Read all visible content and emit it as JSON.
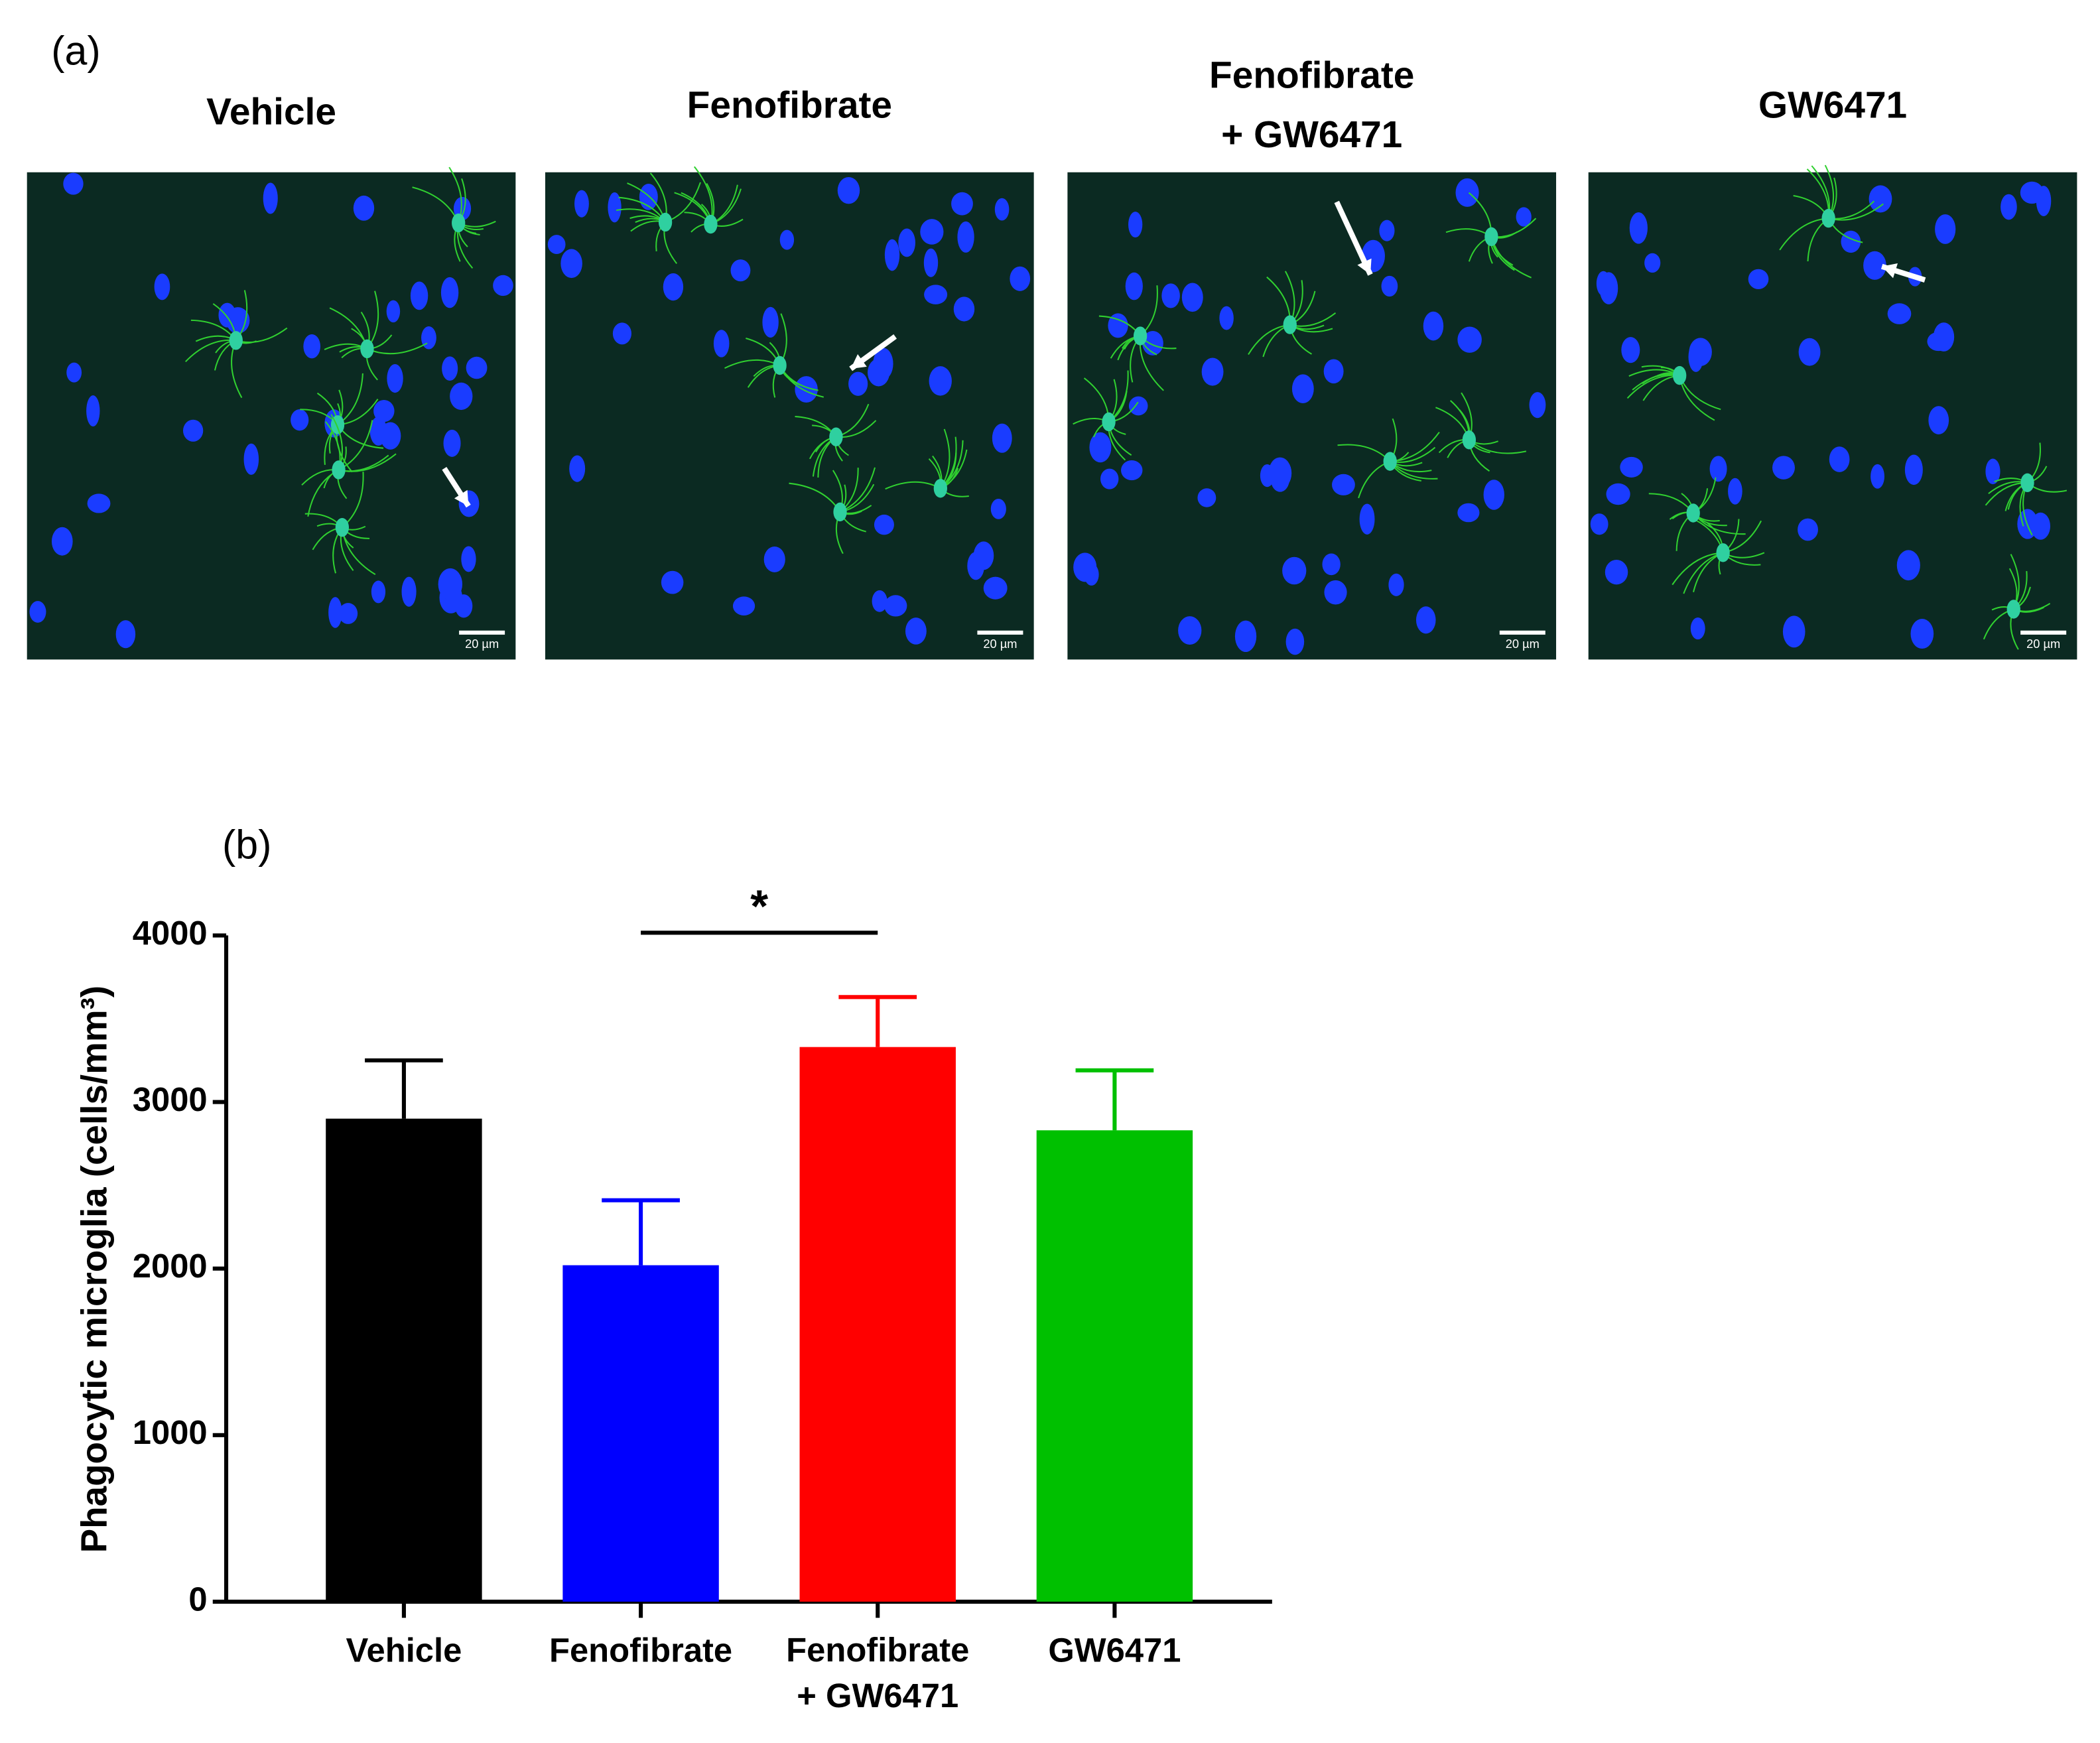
{
  "panel_a": {
    "label": "(a)",
    "images": [
      {
        "title": "Vehicle",
        "scale_bar": "20 µm"
      },
      {
        "title": "Fenofibrate",
        "scale_bar": "20 µm"
      },
      {
        "title": "Fenofibrate + GW6471",
        "scale_bar": "20 µm"
      },
      {
        "title": "GW6471",
        "scale_bar": "20 µm"
      }
    ]
  },
  "chart_data": {
    "type": "bar",
    "panel_label": "(b)",
    "y_label": "Phagocytic microglia (cells/mm³)",
    "categories": [
      "Vehicle",
      "Fenofibrate",
      "Fenofibrate + GW6471",
      "GW6471"
    ],
    "values": [
      2900,
      2020,
      3330,
      2830
    ],
    "errors": [
      350,
      390,
      300,
      360
    ],
    "colors": [
      "#000000",
      "#0000ff",
      "#ff0000",
      "#00c000"
    ],
    "ylim": [
      0,
      4000
    ],
    "yticks": [
      0,
      1000,
      2000,
      3000,
      4000
    ],
    "significance": {
      "text": "*"
    }
  }
}
